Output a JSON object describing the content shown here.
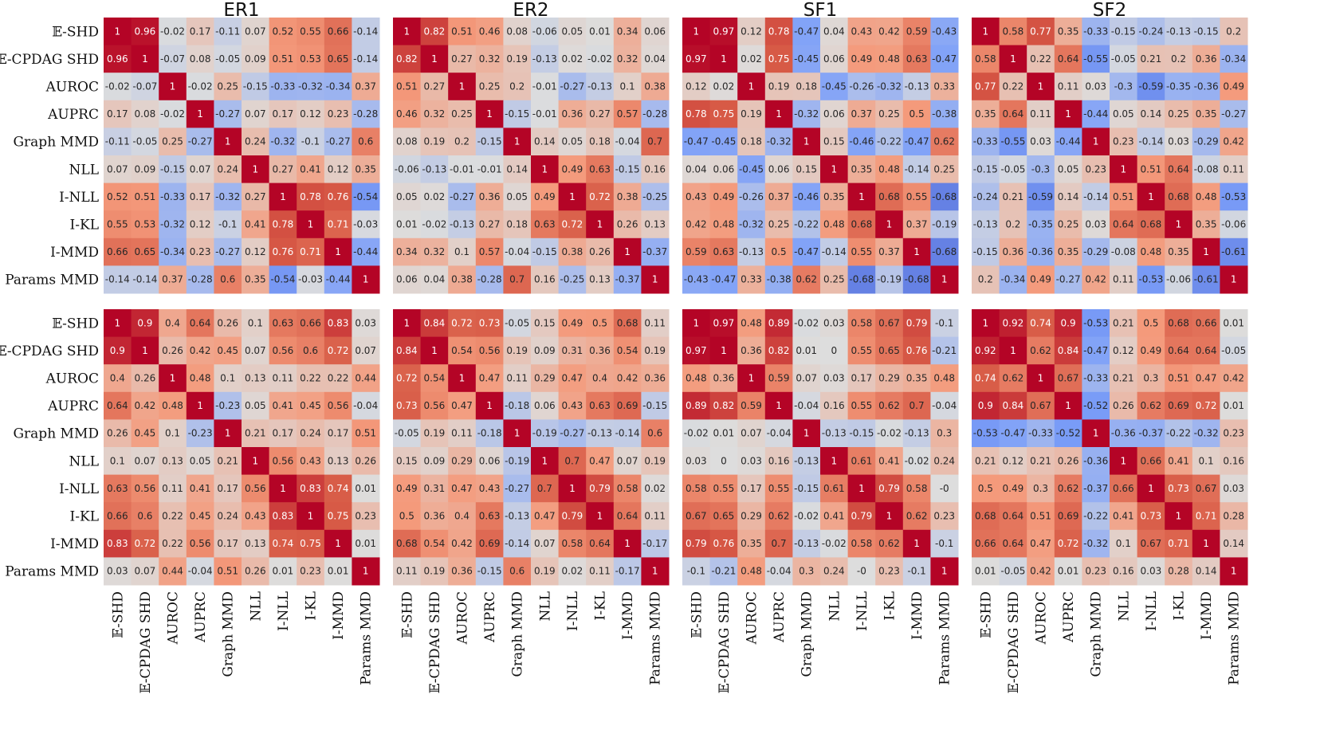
{
  "chart_data": {
    "type": "heatmap",
    "labels": [
      "𝔼-SHD",
      "𝔼-CPDAG SHD",
      "AUROC",
      "AUPRC",
      "Graph MMD",
      "NLL",
      "I-NLL",
      "I-KL",
      "I-MMD",
      "Params MMD"
    ],
    "column_titles": [
      "ER1",
      "ER2",
      "SF1",
      "SF2"
    ],
    "color_range": [
      -1,
      1
    ],
    "colormap": "coolwarm",
    "panels": [
      {
        "row": 0,
        "col": 0,
        "title": "ER1",
        "matrix": [
          [
            "1",
            "0.96",
            "-0.02",
            "0.17",
            "-0.11",
            "0.07",
            "0.52",
            "0.55",
            "0.66",
            "-0.14"
          ],
          [
            "0.96",
            "1",
            "-0.07",
            "0.08",
            "-0.05",
            "0.09",
            "0.51",
            "0.53",
            "0.65",
            "-0.14"
          ],
          [
            "-0.02",
            "-0.07",
            "1",
            "-0.02",
            "0.25",
            "-0.15",
            "-0.33",
            "-0.32",
            "-0.34",
            "0.37"
          ],
          [
            "0.17",
            "0.08",
            "-0.02",
            "1",
            "-0.27",
            "0.07",
            "0.17",
            "0.12",
            "0.23",
            "-0.28"
          ],
          [
            "-0.11",
            "-0.05",
            "0.25",
            "-0.27",
            "1",
            "0.24",
            "-0.32",
            "-0.1",
            "-0.27",
            "0.6"
          ],
          [
            "0.07",
            "0.09",
            "-0.15",
            "0.07",
            "0.24",
            "1",
            "0.27",
            "0.41",
            "0.12",
            "0.35"
          ],
          [
            "0.52",
            "0.51",
            "-0.33",
            "0.17",
            "-0.32",
            "0.27",
            "1",
            "0.78",
            "0.76",
            "-0.54"
          ],
          [
            "0.55",
            "0.53",
            "-0.32",
            "0.12",
            "-0.1",
            "0.41",
            "0.78",
            "1",
            "0.71",
            "-0.03"
          ],
          [
            "0.66",
            "0.65",
            "-0.34",
            "0.23",
            "-0.27",
            "0.12",
            "0.76",
            "0.71",
            "1",
            "-0.44"
          ],
          [
            "-0.14",
            "-0.14",
            "0.37",
            "-0.28",
            "0.6",
            "0.35",
            "-0.54",
            "-0.03",
            "-0.44",
            "1"
          ]
        ]
      },
      {
        "row": 0,
        "col": 1,
        "title": "ER2",
        "matrix": [
          [
            "1",
            "0.82",
            "0.51",
            "0.46",
            "0.08",
            "-0.06",
            "0.05",
            "0.01",
            "0.34",
            "0.06"
          ],
          [
            "0.82",
            "1",
            "0.27",
            "0.32",
            "0.19",
            "-0.13",
            "0.02",
            "-0.02",
            "0.32",
            "0.04"
          ],
          [
            "0.51",
            "0.27",
            "1",
            "0.25",
            "0.2",
            "-0.01",
            "-0.27",
            "-0.13",
            "0.1",
            "0.38"
          ],
          [
            "0.46",
            "0.32",
            "0.25",
            "1",
            "-0.15",
            "-0.01",
            "0.36",
            "0.27",
            "0.57",
            "-0.28"
          ],
          [
            "0.08",
            "0.19",
            "0.2",
            "-0.15",
            "1",
            "0.14",
            "0.05",
            "0.18",
            "-0.04",
            "0.7"
          ],
          [
            "-0.06",
            "-0.13",
            "-0.01",
            "-0.01",
            "0.14",
            "1",
            "0.49",
            "0.63",
            "-0.15",
            "0.16"
          ],
          [
            "0.05",
            "0.02",
            "-0.27",
            "0.36",
            "0.05",
            "0.49",
            "1",
            "0.72",
            "0.38",
            "-0.25"
          ],
          [
            "0.01",
            "-0.02",
            "-0.13",
            "0.27",
            "0.18",
            "0.63",
            "0.72",
            "1",
            "0.26",
            "0.13"
          ],
          [
            "0.34",
            "0.32",
            "0.1",
            "0.57",
            "-0.04",
            "-0.15",
            "0.38",
            "0.26",
            "1",
            "-0.37"
          ],
          [
            "0.06",
            "0.04",
            "0.38",
            "-0.28",
            "0.7",
            "0.16",
            "-0.25",
            "0.13",
            "-0.37",
            "1"
          ]
        ]
      },
      {
        "row": 0,
        "col": 2,
        "title": "SF1",
        "matrix": [
          [
            "1",
            "0.97",
            "0.12",
            "0.78",
            "-0.47",
            "0.04",
            "0.43",
            "0.42",
            "0.59",
            "-0.43"
          ],
          [
            "0.97",
            "1",
            "0.02",
            "0.75",
            "-0.45",
            "0.06",
            "0.49",
            "0.48",
            "0.63",
            "-0.47"
          ],
          [
            "0.12",
            "0.02",
            "1",
            "0.19",
            "0.18",
            "-0.45",
            "-0.26",
            "-0.32",
            "-0.13",
            "0.33"
          ],
          [
            "0.78",
            "0.75",
            "0.19",
            "1",
            "-0.32",
            "0.06",
            "0.37",
            "0.25",
            "0.5",
            "-0.38"
          ],
          [
            "-0.47",
            "-0.45",
            "0.18",
            "-0.32",
            "1",
            "0.15",
            "-0.46",
            "-0.22",
            "-0.47",
            "0.62"
          ],
          [
            "0.04",
            "0.06",
            "-0.45",
            "0.06",
            "0.15",
            "1",
            "0.35",
            "0.48",
            "-0.14",
            "0.25"
          ],
          [
            "0.43",
            "0.49",
            "-0.26",
            "0.37",
            "-0.46",
            "0.35",
            "1",
            "0.68",
            "0.55",
            "-0.68"
          ],
          [
            "0.42",
            "0.48",
            "-0.32",
            "0.25",
            "-0.22",
            "0.48",
            "0.68",
            "1",
            "0.37",
            "-0.19"
          ],
          [
            "0.59",
            "0.63",
            "-0.13",
            "0.5",
            "-0.47",
            "-0.14",
            "0.55",
            "0.37",
            "1",
            "-0.68"
          ],
          [
            "-0.43",
            "-0.47",
            "0.33",
            "-0.38",
            "0.62",
            "0.25",
            "-0.68",
            "-0.19",
            "-0.68",
            "1"
          ]
        ]
      },
      {
        "row": 0,
        "col": 3,
        "title": "SF2",
        "matrix": [
          [
            "1",
            "0.58",
            "0.77",
            "0.35",
            "-0.33",
            "-0.15",
            "-0.24",
            "-0.13",
            "-0.15",
            "0.2"
          ],
          [
            "0.58",
            "1",
            "0.22",
            "0.64",
            "-0.55",
            "-0.05",
            "0.21",
            "0.2",
            "0.36",
            "-0.34"
          ],
          [
            "0.77",
            "0.22",
            "1",
            "0.11",
            "0.03",
            "-0.3",
            "-0.59",
            "-0.35",
            "-0.36",
            "0.49"
          ],
          [
            "0.35",
            "0.64",
            "0.11",
            "1",
            "-0.44",
            "0.05",
            "0.14",
            "0.25",
            "0.35",
            "-0.27"
          ],
          [
            "-0.33",
            "-0.55",
            "0.03",
            "-0.44",
            "1",
            "0.23",
            "-0.14",
            "0.03",
            "-0.29",
            "0.42"
          ],
          [
            "-0.15",
            "-0.05",
            "-0.3",
            "0.05",
            "0.23",
            "1",
            "0.51",
            "0.64",
            "-0.08",
            "0.11"
          ],
          [
            "-0.24",
            "0.21",
            "-0.59",
            "0.14",
            "-0.14",
            "0.51",
            "1",
            "0.68",
            "0.48",
            "-0.53"
          ],
          [
            "-0.13",
            "0.2",
            "-0.35",
            "0.25",
            "0.03",
            "0.64",
            "0.68",
            "1",
            "0.35",
            "-0.06"
          ],
          [
            "-0.15",
            "0.36",
            "-0.36",
            "0.35",
            "-0.29",
            "-0.08",
            "0.48",
            "0.35",
            "1",
            "-0.61"
          ],
          [
            "0.2",
            "-0.34",
            "0.49",
            "-0.27",
            "0.42",
            "0.11",
            "-0.53",
            "-0.06",
            "-0.61",
            "1"
          ]
        ]
      },
      {
        "row": 1,
        "col": 0,
        "title": "",
        "matrix": [
          [
            "1",
            "0.9",
            "0.4",
            "0.64",
            "0.26",
            "0.1",
            "0.63",
            "0.66",
            "0.83",
            "0.03"
          ],
          [
            "0.9",
            "1",
            "0.26",
            "0.42",
            "0.45",
            "0.07",
            "0.56",
            "0.6",
            "0.72",
            "0.07"
          ],
          [
            "0.4",
            "0.26",
            "1",
            "0.48",
            "0.1",
            "0.13",
            "0.11",
            "0.22",
            "0.22",
            "0.44"
          ],
          [
            "0.64",
            "0.42",
            "0.48",
            "1",
            "-0.23",
            "0.05",
            "0.41",
            "0.45",
            "0.56",
            "-0.04"
          ],
          [
            "0.26",
            "0.45",
            "0.1",
            "-0.23",
            "1",
            "0.21",
            "0.17",
            "0.24",
            "0.17",
            "0.51"
          ],
          [
            "0.1",
            "0.07",
            "0.13",
            "0.05",
            "0.21",
            "1",
            "0.56",
            "0.43",
            "0.13",
            "0.26"
          ],
          [
            "0.63",
            "0.56",
            "0.11",
            "0.41",
            "0.17",
            "0.56",
            "1",
            "0.83",
            "0.74",
            "0.01"
          ],
          [
            "0.66",
            "0.6",
            "0.22",
            "0.45",
            "0.24",
            "0.43",
            "0.83",
            "1",
            "0.75",
            "0.23"
          ],
          [
            "0.83",
            "0.72",
            "0.22",
            "0.56",
            "0.17",
            "0.13",
            "0.74",
            "0.75",
            "1",
            "0.01"
          ],
          [
            "0.03",
            "0.07",
            "0.44",
            "-0.04",
            "0.51",
            "0.26",
            "0.01",
            "0.23",
            "0.01",
            "1"
          ]
        ]
      },
      {
        "row": 1,
        "col": 1,
        "title": "",
        "matrix": [
          [
            "1",
            "0.84",
            "0.72",
            "0.73",
            "-0.05",
            "0.15",
            "0.49",
            "0.5",
            "0.68",
            "0.11"
          ],
          [
            "0.84",
            "1",
            "0.54",
            "0.56",
            "0.19",
            "0.09",
            "0.31",
            "0.36",
            "0.54",
            "0.19"
          ],
          [
            "0.72",
            "0.54",
            "1",
            "0.47",
            "0.11",
            "0.29",
            "0.47",
            "0.4",
            "0.42",
            "0.36"
          ],
          [
            "0.73",
            "0.56",
            "0.47",
            "1",
            "-0.18",
            "0.06",
            "0.43",
            "0.63",
            "0.69",
            "-0.15"
          ],
          [
            "-0.05",
            "0.19",
            "0.11",
            "-0.18",
            "1",
            "-0.19",
            "-0.27",
            "-0.13",
            "-0.14",
            "0.6"
          ],
          [
            "0.15",
            "0.09",
            "0.29",
            "0.06",
            "-0.19",
            "1",
            "0.7",
            "0.47",
            "0.07",
            "0.19"
          ],
          [
            "0.49",
            "0.31",
            "0.47",
            "0.43",
            "-0.27",
            "0.7",
            "1",
            "0.79",
            "0.58",
            "0.02"
          ],
          [
            "0.5",
            "0.36",
            "0.4",
            "0.63",
            "-0.13",
            "0.47",
            "0.79",
            "1",
            "0.64",
            "0.11"
          ],
          [
            "0.68",
            "0.54",
            "0.42",
            "0.69",
            "-0.14",
            "0.07",
            "0.58",
            "0.64",
            "1",
            "-0.17"
          ],
          [
            "0.11",
            "0.19",
            "0.36",
            "-0.15",
            "0.6",
            "0.19",
            "0.02",
            "0.11",
            "-0.17",
            "1"
          ]
        ]
      },
      {
        "row": 1,
        "col": 2,
        "title": "",
        "matrix": [
          [
            "1",
            "0.97",
            "0.48",
            "0.89",
            "-0.02",
            "0.03",
            "0.58",
            "0.67",
            "0.79",
            "-0.1"
          ],
          [
            "0.97",
            "1",
            "0.36",
            "0.82",
            "0.01",
            "0",
            "0.55",
            "0.65",
            "0.76",
            "-0.21"
          ],
          [
            "0.48",
            "0.36",
            "1",
            "0.59",
            "0.07",
            "0.03",
            "0.17",
            "0.29",
            "0.35",
            "0.48"
          ],
          [
            "0.89",
            "0.82",
            "0.59",
            "1",
            "-0.04",
            "0.16",
            "0.55",
            "0.62",
            "0.7",
            "-0.04"
          ],
          [
            "-0.02",
            "0.01",
            "0.07",
            "-0.04",
            "1",
            "-0.13",
            "-0.15",
            "-0.02",
            "-0.13",
            "0.3"
          ],
          [
            "0.03",
            "0",
            "0.03",
            "0.16",
            "-0.13",
            "1",
            "0.61",
            "0.41",
            "-0.02",
            "0.24"
          ],
          [
            "0.58",
            "0.55",
            "0.17",
            "0.55",
            "-0.15",
            "0.61",
            "1",
            "0.79",
            "0.58",
            "-0"
          ],
          [
            "0.67",
            "0.65",
            "0.29",
            "0.62",
            "-0.02",
            "0.41",
            "0.79",
            "1",
            "0.62",
            "0.23"
          ],
          [
            "0.79",
            "0.76",
            "0.35",
            "0.7",
            "-0.13",
            "-0.02",
            "0.58",
            "0.62",
            "1",
            "-0.1"
          ],
          [
            "-0.1",
            "-0.21",
            "0.48",
            "-0.04",
            "0.3",
            "0.24",
            "-0",
            "0.23",
            "-0.1",
            "1"
          ]
        ]
      },
      {
        "row": 1,
        "col": 3,
        "title": "",
        "matrix": [
          [
            "1",
            "0.92",
            "0.74",
            "0.9",
            "-0.53",
            "0.21",
            "0.5",
            "0.68",
            "0.66",
            "0.01"
          ],
          [
            "0.92",
            "1",
            "0.62",
            "0.84",
            "-0.47",
            "0.12",
            "0.49",
            "0.64",
            "0.64",
            "-0.05"
          ],
          [
            "0.74",
            "0.62",
            "1",
            "0.67",
            "-0.33",
            "0.21",
            "0.3",
            "0.51",
            "0.47",
            "0.42"
          ],
          [
            "0.9",
            "0.84",
            "0.67",
            "1",
            "-0.52",
            "0.26",
            "0.62",
            "0.69",
            "0.72",
            "0.01"
          ],
          [
            "-0.53",
            "-0.47",
            "-0.33",
            "-0.52",
            "1",
            "-0.36",
            "-0.37",
            "-0.22",
            "-0.32",
            "0.23"
          ],
          [
            "0.21",
            "0.12",
            "0.21",
            "0.26",
            "-0.36",
            "1",
            "0.66",
            "0.41",
            "0.1",
            "0.16"
          ],
          [
            "0.5",
            "0.49",
            "0.3",
            "0.62",
            "-0.37",
            "0.66",
            "1",
            "0.73",
            "0.67",
            "0.03"
          ],
          [
            "0.68",
            "0.64",
            "0.51",
            "0.69",
            "-0.22",
            "0.41",
            "0.73",
            "1",
            "0.71",
            "0.28"
          ],
          [
            "0.66",
            "0.64",
            "0.47",
            "0.72",
            "-0.32",
            "0.1",
            "0.67",
            "0.71",
            "1",
            "0.14"
          ],
          [
            "0.01",
            "-0.05",
            "0.42",
            "0.01",
            "0.23",
            "0.16",
            "0.03",
            "0.28",
            "0.14",
            "1"
          ]
        ]
      }
    ]
  }
}
